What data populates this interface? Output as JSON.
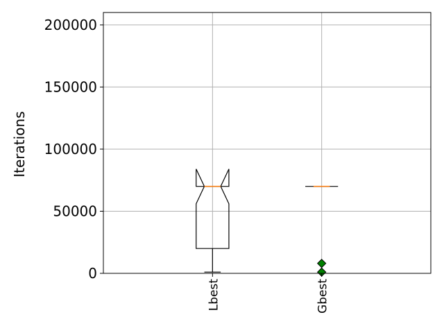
{
  "chart_data": {
    "type": "boxplot",
    "title": "",
    "xlabel": "",
    "ylabel": "Iterations",
    "ylim": [
      0,
      210000
    ],
    "yticks": [
      0,
      50000,
      100000,
      150000,
      200000
    ],
    "ytick_labels": [
      "0",
      "50000",
      "100000",
      "150000",
      "200000"
    ],
    "grid": true,
    "notched": true,
    "categories": [
      "Lbest",
      "Gbest"
    ],
    "boxes": [
      {
        "name": "Lbest",
        "whisker_low": 1000,
        "q1": 20000,
        "median": 70000,
        "q3": 70000,
        "whisker_high": 70000,
        "notch_low": 56000,
        "notch_high": 84000,
        "outliers": []
      },
      {
        "name": "Gbest",
        "whisker_low": 70000,
        "q1": 70000,
        "median": 70000,
        "q3": 70000,
        "whisker_high": 70000,
        "notch_low": 70000,
        "notch_high": 70000,
        "outliers": [
          1000,
          8000
        ]
      }
    ],
    "colors": {
      "box": "#000000",
      "median": "#ff7f0e",
      "outlier": "#008000",
      "grid": "#b0b0b0"
    }
  }
}
